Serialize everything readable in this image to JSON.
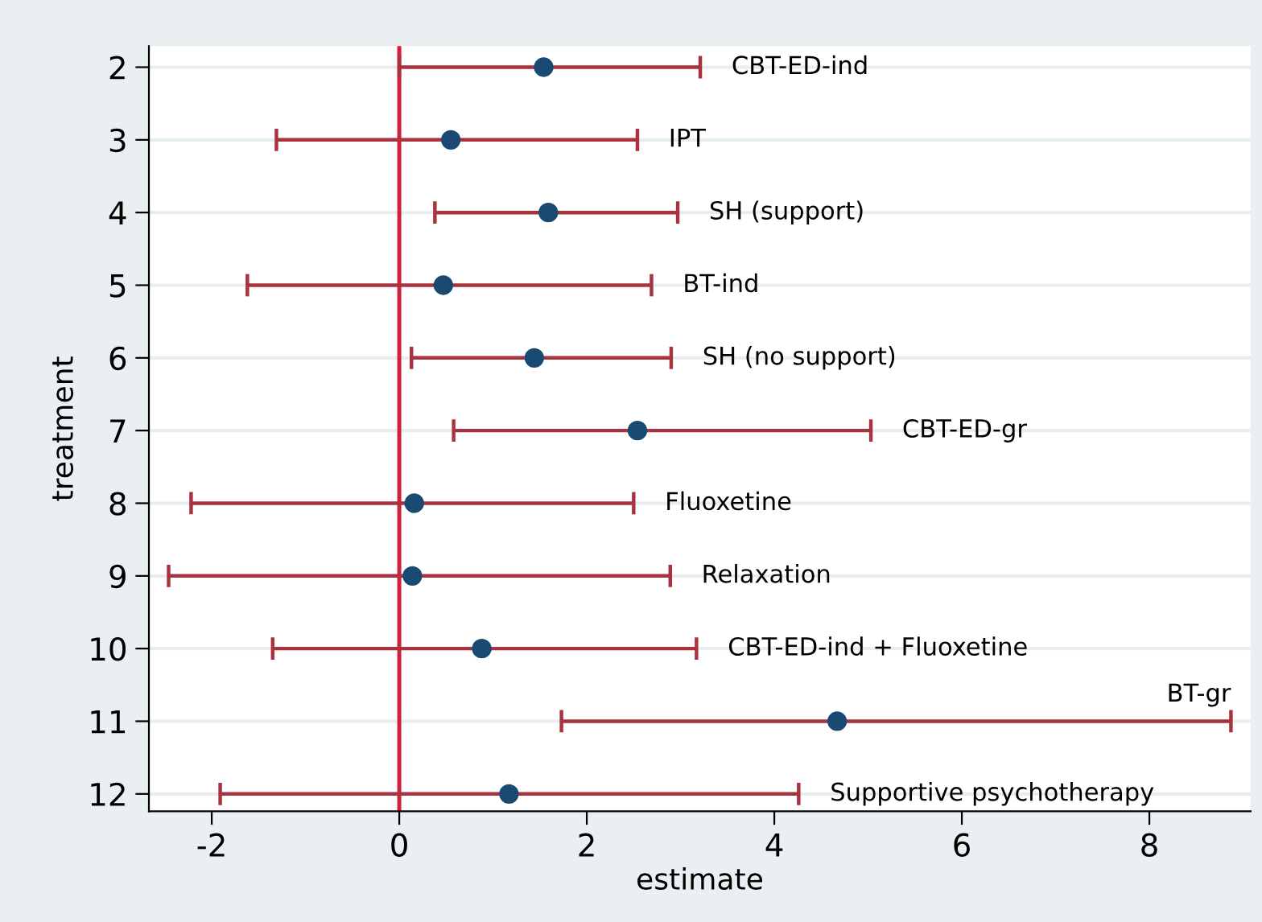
{
  "chart_data": {
    "type": "scatter",
    "xlabel": "estimate",
    "ylabel": "treatment",
    "series": [
      {
        "color": "#1a4a72",
        "x": [
          1.54,
          0.55,
          1.59,
          0.47,
          1.44,
          2.54,
          0.16,
          0.14,
          0.88,
          4.67,
          1.17
        ],
        "values": [
          2,
          3,
          4,
          5,
          6,
          7,
          8,
          9,
          10,
          11,
          12
        ],
        "xerrors": [
          [
            0.0,
            3.21
          ],
          [
            -1.31,
            2.54
          ],
          [
            0.38,
            2.97
          ],
          [
            -1.62,
            2.69
          ],
          [
            0.13,
            2.9
          ],
          [
            0.58,
            5.03
          ],
          [
            -2.22,
            2.5
          ],
          [
            -2.46,
            2.89
          ],
          [
            -1.35,
            3.17
          ],
          [
            1.73,
            8.87
          ],
          [
            -1.91,
            4.26
          ]
        ]
      }
    ],
    "xlim": [
      -2.67,
      9.08
    ],
    "ylim": [
      12.24,
      1.71
    ],
    "xticks": [
      -2,
      0,
      2,
      4,
      6,
      8
    ],
    "yticks": [
      2,
      3,
      4,
      5,
      6,
      7,
      8,
      9,
      10,
      11,
      12
    ],
    "ref_lines": [
      {
        "axis": "x",
        "value": 0,
        "color": "#d0203c"
      }
    ],
    "grid": "y",
    "marker": "circle",
    "legend": false,
    "annotations": [
      "CBT-ED-ind",
      "IPT",
      "SH (support)",
      "BT-ind",
      "SH (no support)",
      "CBT-ED-gr",
      "Fluoxetine",
      "Relaxation",
      "CBT-ED-ind + Fluoxetine",
      "BT-gr",
      "Supportive psychotherapy"
    ]
  }
}
